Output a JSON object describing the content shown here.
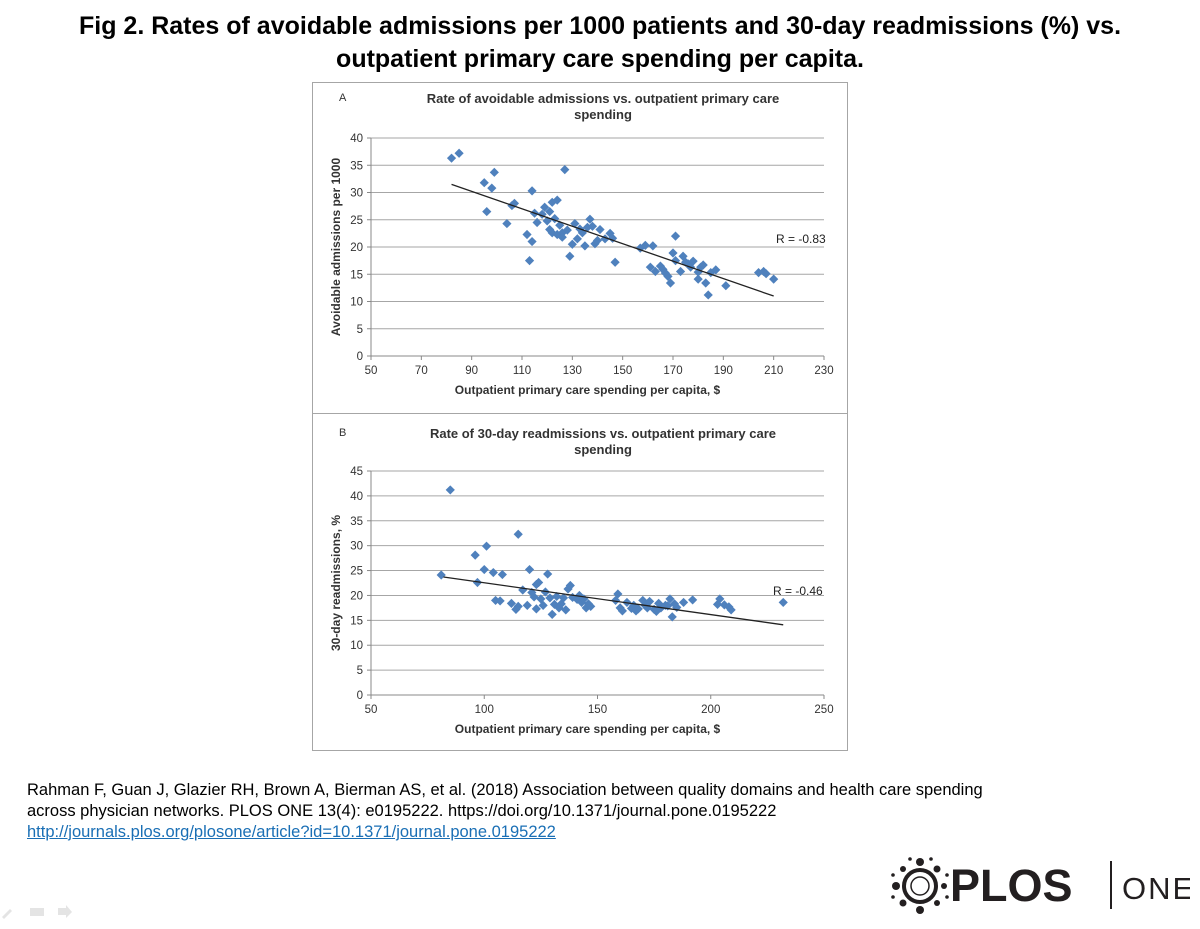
{
  "figure_title": {
    "line1": "Fig 2. Rates of avoidable admissions per 1000 patients and 30-day readmissions (%) vs.",
    "line2": "outpatient primary care spending per capita."
  },
  "citation": {
    "line1": "Rahman F, Guan J, Glazier RH, Brown A, Bierman AS, et al. (2018) Association between quality domains and health care spending",
    "line2": "across physician networks. PLOS ONE 13(4): e0195222. https://doi.org/10.1371/journal.pone.0195222",
    "link": "http://journals.plos.org/plosone/article?id=10.1371/journal.pone.0195222"
  },
  "logo": {
    "brand": "PLOS",
    "suffix": "ONE",
    "colors": {
      "text": "#231f20"
    }
  },
  "chart_data": [
    {
      "type": "scatter",
      "panel_label": "A",
      "title": "Rate of avoidable admissions vs. outpatient primary care spending",
      "xlabel": "Outpatient primary care spending per capita, $",
      "ylabel": "Avoidable admissions per 1000",
      "xlim": [
        50,
        230
      ],
      "ylim": [
        0,
        40
      ],
      "xticks": [
        50,
        70,
        90,
        110,
        130,
        150,
        170,
        190,
        210,
        230
      ],
      "yticks": [
        0,
        5,
        10,
        15,
        20,
        25,
        30,
        35,
        40
      ],
      "grid": "horizontal",
      "annotation": "R = -0.83",
      "trendline": [
        [
          82,
          31.5
        ],
        [
          210,
          11
        ]
      ],
      "marker_color": "#4f81bd",
      "points": [
        [
          82,
          36.3
        ],
        [
          85,
          37.2
        ],
        [
          95,
          31.8
        ],
        [
          96,
          26.5
        ],
        [
          98,
          30.8
        ],
        [
          99,
          33.7
        ],
        [
          104,
          24.3
        ],
        [
          106,
          27.6
        ],
        [
          107,
          28
        ],
        [
          112,
          22.3
        ],
        [
          113,
          17.5
        ],
        [
          114,
          30.3
        ],
        [
          114,
          21
        ],
        [
          115,
          26.2
        ],
        [
          116,
          24.5
        ],
        [
          118,
          26
        ],
        [
          119,
          27.3
        ],
        [
          120,
          24.8
        ],
        [
          121,
          23.2
        ],
        [
          121,
          26.5
        ],
        [
          122,
          28.2
        ],
        [
          122,
          22.6
        ],
        [
          123,
          25.2
        ],
        [
          124,
          22.3
        ],
        [
          124,
          28.6
        ],
        [
          125,
          24
        ],
        [
          126,
          22.6
        ],
        [
          126,
          21.8
        ],
        [
          127,
          34.2
        ],
        [
          128,
          23.1
        ],
        [
          129,
          18.3
        ],
        [
          130,
          20.5
        ],
        [
          131,
          24.3
        ],
        [
          132,
          21.5
        ],
        [
          133,
          23.3
        ],
        [
          134,
          22.6
        ],
        [
          135,
          20.2
        ],
        [
          136,
          23.6
        ],
        [
          137,
          25.1
        ],
        [
          138,
          23.8
        ],
        [
          139,
          20.6
        ],
        [
          140,
          21.2
        ],
        [
          141,
          23.2
        ],
        [
          143,
          21.5
        ],
        [
          145,
          22.5
        ],
        [
          146,
          21.6
        ],
        [
          147,
          17.2
        ],
        [
          157,
          19.8
        ],
        [
          159,
          20.3
        ],
        [
          161,
          16.3
        ],
        [
          162,
          20.2
        ],
        [
          163,
          15.5
        ],
        [
          165,
          16.5
        ],
        [
          166,
          15.9
        ],
        [
          167,
          15.2
        ],
        [
          168,
          14.6
        ],
        [
          169,
          13.4
        ],
        [
          170,
          18.9
        ],
        [
          171,
          22
        ],
        [
          171,
          17.5
        ],
        [
          173,
          15.5
        ],
        [
          174,
          18.3
        ],
        [
          175,
          17.2
        ],
        [
          176,
          16.9
        ],
        [
          177,
          16.3
        ],
        [
          178,
          17.4
        ],
        [
          180,
          15.4
        ],
        [
          180,
          14.1
        ],
        [
          181,
          16.3
        ],
        [
          182,
          16.7
        ],
        [
          183,
          13.4
        ],
        [
          184,
          11.2
        ],
        [
          185,
          15.3
        ],
        [
          187,
          15.8
        ],
        [
          191,
          12.9
        ],
        [
          204,
          15.3
        ],
        [
          206,
          15.5
        ],
        [
          207,
          15.1
        ],
        [
          210,
          14.1
        ]
      ]
    },
    {
      "type": "scatter",
      "panel_label": "B",
      "title": "Rate of 30-day readmissions vs. outpatient primary care spending",
      "xlabel": "Outpatient primary care spending per capita, $",
      "ylabel": "30-day readmissions, %",
      "xlim": [
        50,
        250
      ],
      "ylim": [
        0,
        45
      ],
      "xticks": [
        50,
        100,
        150,
        200,
        250
      ],
      "yticks": [
        0,
        5,
        10,
        15,
        20,
        25,
        30,
        35,
        40,
        45
      ],
      "grid": "horizontal",
      "annotation": "R = -0.46",
      "trendline": [
        [
          82,
          23.7
        ],
        [
          232,
          14.1
        ]
      ],
      "marker_color": "#4f81bd",
      "points": [
        [
          81,
          24.1
        ],
        [
          85,
          41.2
        ],
        [
          96,
          28.1
        ],
        [
          97,
          22.6
        ],
        [
          100,
          25.2
        ],
        [
          101,
          29.9
        ],
        [
          104,
          24.6
        ],
        [
          105,
          19
        ],
        [
          107,
          18.9
        ],
        [
          108,
          24.2
        ],
        [
          112,
          18.4
        ],
        [
          114,
          17.2
        ],
        [
          115,
          32.3
        ],
        [
          115,
          17.8
        ],
        [
          117,
          21.1
        ],
        [
          119,
          18
        ],
        [
          120,
          25.2
        ],
        [
          121,
          20.6
        ],
        [
          122,
          19.7
        ],
        [
          123,
          22.2
        ],
        [
          123,
          17.3
        ],
        [
          124,
          22.6
        ],
        [
          125,
          19.3
        ],
        [
          126,
          18
        ],
        [
          127,
          20.7
        ],
        [
          128,
          24.3
        ],
        [
          129,
          19.5
        ],
        [
          130,
          16.2
        ],
        [
          131,
          18.2
        ],
        [
          132,
          19.8
        ],
        [
          133,
          17.5
        ],
        [
          134,
          18.3
        ],
        [
          135,
          19.5
        ],
        [
          136,
          17.1
        ],
        [
          137,
          21.3
        ],
        [
          138,
          22
        ],
        [
          139,
          19.6
        ],
        [
          141,
          19.2
        ],
        [
          142,
          20
        ],
        [
          143,
          18.6
        ],
        [
          144,
          19.3
        ],
        [
          145,
          17.5
        ],
        [
          146,
          18.3
        ],
        [
          147,
          17.8
        ],
        [
          158,
          19
        ],
        [
          159,
          20.3
        ],
        [
          160,
          17.5
        ],
        [
          161,
          16.9
        ],
        [
          163,
          18.6
        ],
        [
          165,
          17.4
        ],
        [
          166,
          18
        ],
        [
          167,
          16.9
        ],
        [
          168,
          17.3
        ],
        [
          170,
          19
        ],
        [
          171,
          18
        ],
        [
          172,
          17.5
        ],
        [
          173,
          18.8
        ],
        [
          175,
          17.2
        ],
        [
          176,
          16.8
        ],
        [
          177,
          18.4
        ],
        [
          178,
          17.5
        ],
        [
          180,
          18
        ],
        [
          181,
          17.9
        ],
        [
          182,
          19.3
        ],
        [
          183,
          15.7
        ],
        [
          184,
          18.3
        ],
        [
          185,
          17.6
        ],
        [
          188,
          18.6
        ],
        [
          192,
          19.1
        ],
        [
          203,
          18.2
        ],
        [
          204,
          19.3
        ],
        [
          206,
          18.1
        ],
        [
          208,
          17.7
        ],
        [
          209,
          17.1
        ],
        [
          232,
          18.6
        ]
      ]
    }
  ]
}
